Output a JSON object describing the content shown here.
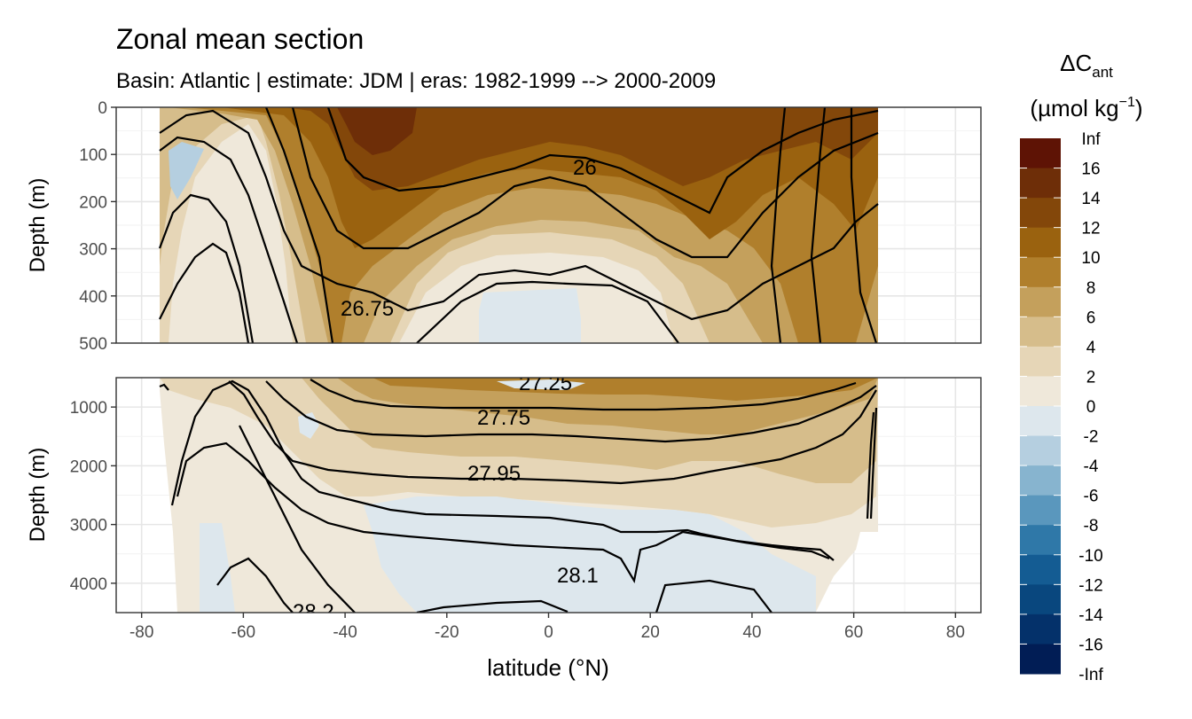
{
  "chart_data": {
    "type": "heatmap",
    "title": "Zonal mean section",
    "subtitle": "Basin: Atlantic | estimate: JDM  | eras: 1982-1999 --> 2000-2009",
    "xlabel": "latitude (°N)",
    "ylabel": "Depth (m)",
    "x_ticks": [
      -80,
      -60,
      -40,
      -20,
      0,
      20,
      40,
      60,
      80
    ],
    "xlim": [
      -85,
      85
    ],
    "grid": true,
    "panels": [
      {
        "name": "upper",
        "ylim": [
          500,
          0
        ],
        "y_ticks": [
          0,
          100,
          200,
          300,
          400,
          500
        ]
      },
      {
        "name": "lower",
        "ylim": [
          4500,
          500
        ],
        "y_ticks": [
          1000,
          2000,
          3000,
          4000
        ]
      }
    ],
    "legend": {
      "title_main": "ΔC",
      "title_sub": "ant",
      "unit_main": "(µmol kg",
      "unit_exp": "−1",
      "unit_close": ")",
      "placement": "right",
      "labels": [
        "Inf",
        "16",
        "14",
        "12",
        "10",
        "8",
        "6",
        "4",
        "2",
        "0",
        "-2",
        "-4",
        "-6",
        "-8",
        "-10",
        "-12",
        "-14",
        "-16",
        "-Inf"
      ],
      "colors": [
        "#5e1305",
        "#6e2e08",
        "#83470a",
        "#9a620f",
        "#b07f2c",
        "#c4a05c",
        "#d6bd8b",
        "#e6d6b7",
        "#efe8da",
        "#dde7ed",
        "#b5cfe0",
        "#87b4cf",
        "#5a97bd",
        "#2f78a8",
        "#145c93",
        "#09477e",
        "#04316a",
        "#011d55"
      ]
    },
    "isopycnal_labels": [
      "26",
      "26.75",
      "27.25",
      "27.75",
      "27.95",
      "28.1",
      "28.2"
    ]
  }
}
